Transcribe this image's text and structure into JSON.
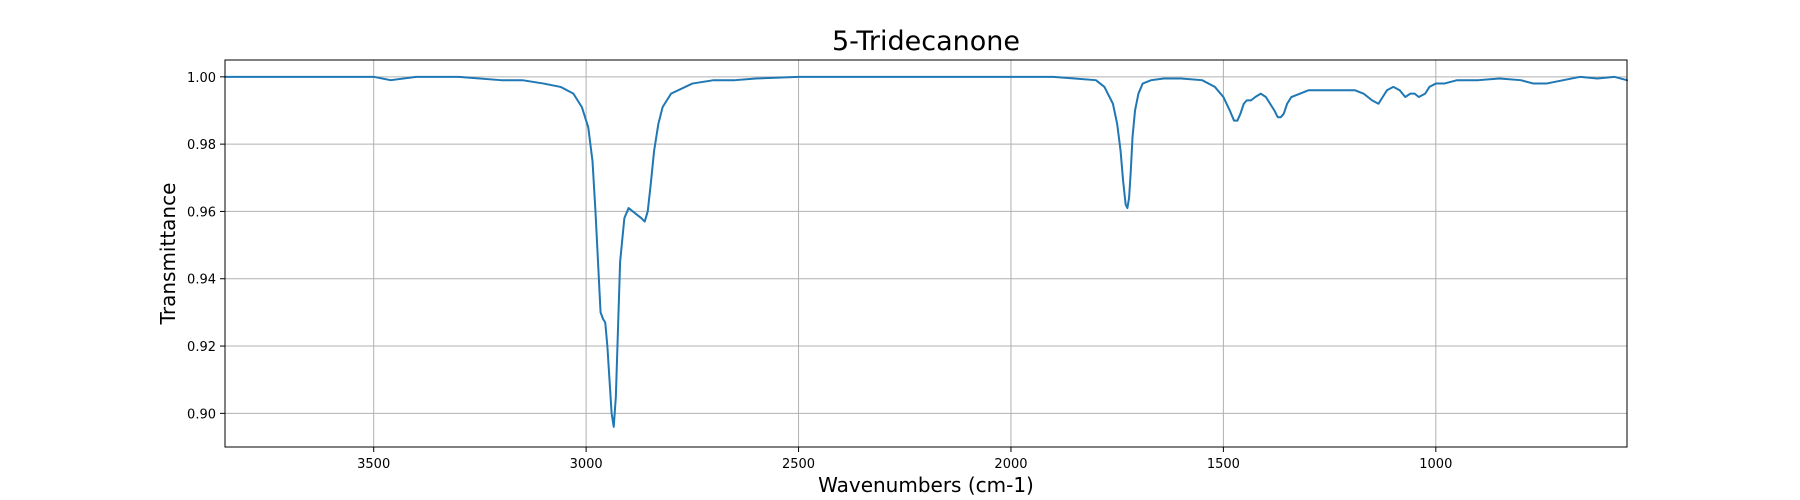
{
  "chart_data": {
    "type": "line",
    "title": "5-Tridecanone",
    "xlabel": "Wavenumbers (cm-1)",
    "ylabel": "Transmittance",
    "xlim": [
      3850,
      550
    ],
    "ylim": [
      0.89,
      1.005
    ],
    "x_reversed": true,
    "grid": true,
    "legend": "none",
    "xticks": [
      3500,
      3000,
      2500,
      2000,
      1500,
      1000
    ],
    "xtick_labels": [
      "3500",
      "3000",
      "2500",
      "2000",
      "1500",
      "1000"
    ],
    "yticks": [
      0.9,
      0.92,
      0.94,
      0.96,
      0.98,
      1.0
    ],
    "ytick_labels": [
      "0.90",
      "0.92",
      "0.94",
      "0.96",
      "0.98",
      "1.00"
    ],
    "line_color": "#1f77b4",
    "series": [
      {
        "x": [
          3850,
          3700,
          3600,
          3500,
          3460,
          3400,
          3300,
          3200,
          3150,
          3100,
          3060,
          3030,
          3010,
          2995,
          2985,
          2978,
          2972,
          2966,
          2960,
          2955,
          2950,
          2945,
          2940,
          2935,
          2930,
          2925,
          2920,
          2910,
          2900,
          2890,
          2880,
          2870,
          2862,
          2855,
          2848,
          2840,
          2830,
          2820,
          2800,
          2750,
          2700,
          2650,
          2600,
          2500,
          2400,
          2200,
          2000,
          1900,
          1800,
          1780,
          1760,
          1750,
          1742,
          1736,
          1730,
          1726,
          1722,
          1718,
          1714,
          1708,
          1700,
          1690,
          1670,
          1640,
          1600,
          1550,
          1520,
          1500,
          1485,
          1475,
          1467,
          1460,
          1452,
          1445,
          1435,
          1425,
          1412,
          1400,
          1390,
          1380,
          1372,
          1365,
          1358,
          1350,
          1340,
          1320,
          1300,
          1275,
          1250,
          1220,
          1190,
          1170,
          1150,
          1135,
          1125,
          1115,
          1100,
          1085,
          1072,
          1060,
          1050,
          1040,
          1025,
          1015,
          1000,
          980,
          950,
          900,
          850,
          800,
          770,
          740,
          700,
          660,
          620,
          580,
          550
        ],
        "values": [
          1.0,
          1.0,
          1.0,
          1.0,
          0.999,
          1.0,
          1.0,
          0.999,
          0.999,
          0.998,
          0.997,
          0.995,
          0.991,
          0.985,
          0.975,
          0.96,
          0.945,
          0.93,
          0.928,
          0.927,
          0.92,
          0.91,
          0.9,
          0.896,
          0.905,
          0.925,
          0.945,
          0.958,
          0.961,
          0.96,
          0.959,
          0.958,
          0.957,
          0.96,
          0.968,
          0.978,
          0.986,
          0.991,
          0.995,
          0.998,
          0.999,
          0.999,
          0.9995,
          1.0,
          1.0,
          1.0,
          1.0,
          1.0,
          0.999,
          0.997,
          0.992,
          0.986,
          0.978,
          0.969,
          0.962,
          0.961,
          0.964,
          0.972,
          0.982,
          0.99,
          0.995,
          0.998,
          0.999,
          0.9995,
          0.9995,
          0.999,
          0.997,
          0.994,
          0.99,
          0.987,
          0.987,
          0.989,
          0.992,
          0.993,
          0.993,
          0.994,
          0.995,
          0.994,
          0.992,
          0.99,
          0.988,
          0.988,
          0.989,
          0.992,
          0.994,
          0.995,
          0.996,
          0.996,
          0.996,
          0.996,
          0.996,
          0.995,
          0.993,
          0.992,
          0.994,
          0.996,
          0.997,
          0.996,
          0.994,
          0.995,
          0.995,
          0.994,
          0.995,
          0.997,
          0.998,
          0.998,
          0.999,
          0.999,
          0.9995,
          0.999,
          0.998,
          0.998,
          0.999,
          1.0,
          0.9995,
          1.0,
          0.999
        ]
      }
    ]
  }
}
